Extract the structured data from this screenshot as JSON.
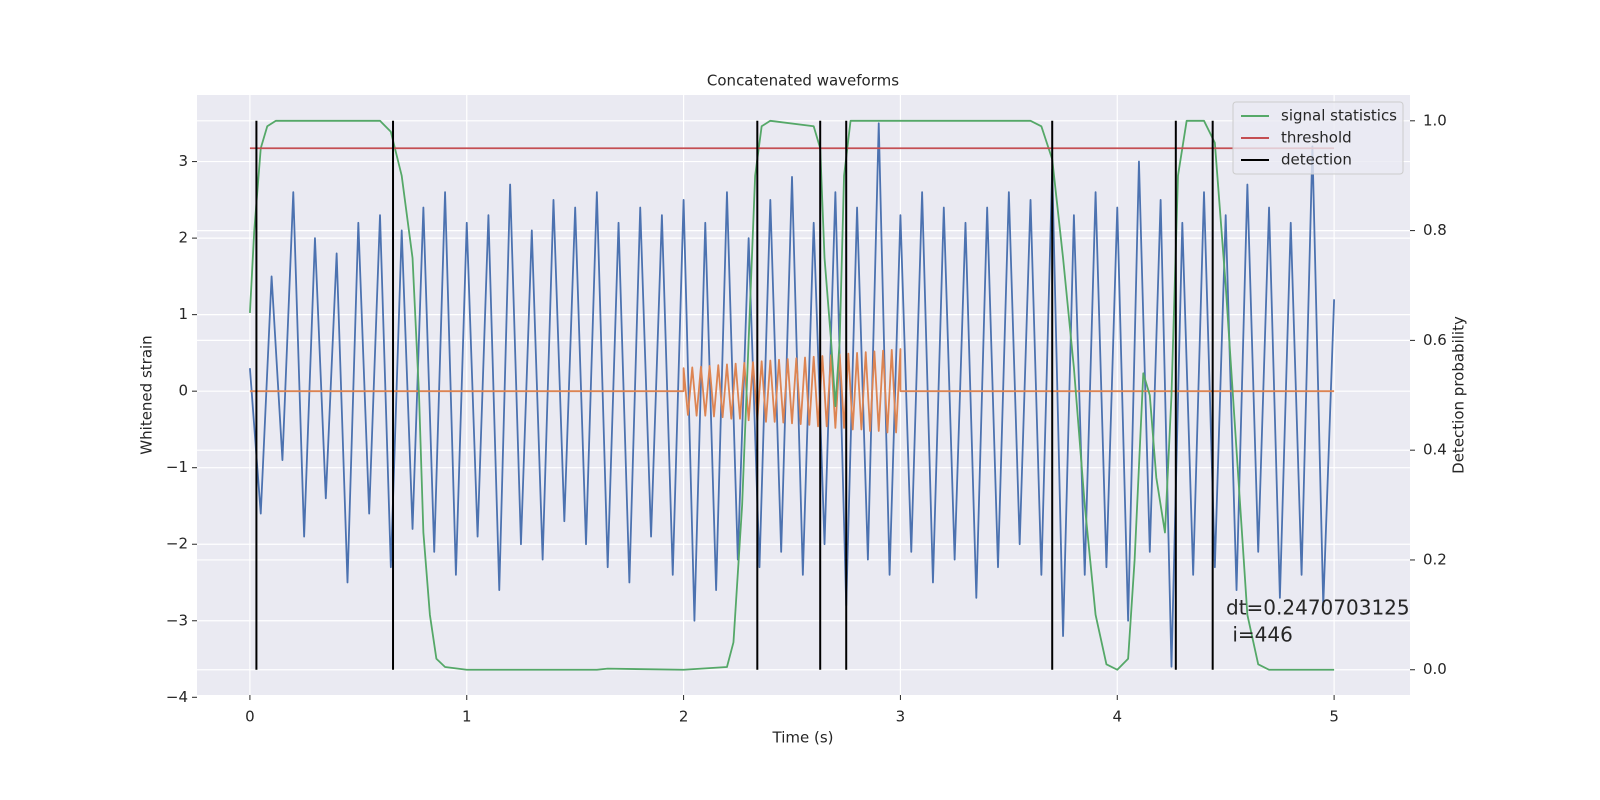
{
  "chart_data": {
    "type": "line",
    "title": "Concatenated waveforms",
    "xlabel": "Time (s)",
    "ylabel": "Whitened strain",
    "y2label": "Detection probability",
    "xlim": [
      -0.244,
      5.35
    ],
    "ylim": [
      -3.97,
      3.87
    ],
    "y2lim": [
      -0.046,
      1.047
    ],
    "xticks": [
      0,
      1,
      2,
      3,
      4,
      5
    ],
    "yticks": [
      {
        "value": -4,
        "label": "−4"
      },
      {
        "value": -3,
        "label": "−3"
      },
      {
        "value": -2,
        "label": "−2"
      },
      {
        "value": -1,
        "label": "−1"
      },
      0,
      1,
      2,
      3
    ],
    "y2ticks": [
      {
        "value": 0,
        "label": "0.0"
      },
      0.2,
      0.4,
      0.6,
      0.8,
      {
        "value": 1,
        "label": "1.0"
      }
    ],
    "grid": true,
    "legend": "upper right",
    "annotation": [
      "dt=0.2470703125",
      " i=446"
    ],
    "series": [
      {
        "color": "#4c72b0",
        "axis": "y",
        "x": [
          0,
          0.05,
          0.1,
          0.15,
          0.2,
          0.25,
          0.3,
          0.35,
          0.4,
          0.45,
          0.5,
          0.55,
          0.6,
          0.65,
          0.7,
          0.75,
          0.8,
          0.85,
          0.9,
          0.95,
          1.0,
          1.05,
          1.1,
          1.15,
          1.2,
          1.25,
          1.3,
          1.35,
          1.4,
          1.45,
          1.5,
          1.55,
          1.6,
          1.65,
          1.7,
          1.75,
          1.8,
          1.85,
          1.9,
          1.95,
          2.0,
          2.05,
          2.1,
          2.15,
          2.2,
          2.25,
          2.3,
          2.35,
          2.4,
          2.45,
          2.5,
          2.55,
          2.6,
          2.65,
          2.7,
          2.75,
          2.8,
          2.85,
          2.9,
          2.95,
          3.0,
          3.05,
          3.1,
          3.15,
          3.2,
          3.25,
          3.3,
          3.35,
          3.4,
          3.45,
          3.5,
          3.55,
          3.6,
          3.65,
          3.7,
          3.75,
          3.8,
          3.85,
          3.9,
          3.95,
          4.0,
          4.05,
          4.1,
          4.15,
          4.2,
          4.25,
          4.3,
          4.35,
          4.4,
          4.45,
          4.5,
          4.55,
          4.6,
          4.65,
          4.7,
          4.75,
          4.8,
          4.85,
          4.9,
          4.95,
          5.0
        ],
        "values": [
          0.3,
          -1.6,
          1.5,
          -0.9,
          2.6,
          -1.9,
          2.0,
          -1.4,
          1.8,
          -2.5,
          2.2,
          -1.6,
          2.3,
          -2.3,
          2.1,
          -1.8,
          2.4,
          -2.1,
          2.6,
          -2.4,
          2.2,
          -1.9,
          2.3,
          -2.6,
          2.7,
          -2.0,
          2.1,
          -2.2,
          2.5,
          -1.7,
          2.4,
          -2.0,
          2.6,
          -2.3,
          2.2,
          -2.5,
          2.4,
          -1.9,
          2.3,
          -2.4,
          2.5,
          -3.0,
          2.2,
          -2.6,
          2.6,
          -2.2,
          2.0,
          -2.3,
          2.5,
          -2.1,
          2.8,
          -2.4,
          2.2,
          -2.0,
          2.6,
          -2.8,
          2.4,
          -2.2,
          3.5,
          -2.4,
          2.3,
          -2.1,
          2.6,
          -2.5,
          2.4,
          -2.2,
          2.2,
          -2.7,
          2.4,
          -2.3,
          2.6,
          -2.0,
          2.5,
          -2.4,
          2.9,
          -3.2,
          2.3,
          -2.4,
          2.6,
          -2.3,
          2.4,
          -3.0,
          3.0,
          -2.1,
          2.5,
          -3.6,
          2.2,
          -2.4,
          2.6,
          -2.3,
          2.3,
          -2.6,
          2.7,
          -2.1,
          2.4,
          -2.7,
          2.2,
          -2.4,
          3.2,
          -2.8,
          1.2
        ]
      },
      {
        "color": "#dd8452",
        "axis": "y",
        "x": [
          0,
          2.0,
          2.0,
          2.02,
          2.04,
          2.06,
          2.08,
          2.1,
          2.12,
          2.14,
          2.16,
          2.18,
          2.2,
          2.22,
          2.24,
          2.26,
          2.28,
          2.3,
          2.32,
          2.34,
          2.36,
          2.38,
          2.4,
          2.42,
          2.44,
          2.46,
          2.48,
          2.5,
          2.52,
          2.54,
          2.56,
          2.58,
          2.6,
          2.62,
          2.64,
          2.66,
          2.68,
          2.7,
          2.72,
          2.74,
          2.76,
          2.78,
          2.8,
          2.82,
          2.84,
          2.86,
          2.88,
          2.9,
          2.92,
          2.94,
          2.96,
          2.98,
          3.0,
          3.0,
          5.0
        ],
        "values": [
          0,
          0,
          0.3,
          -0.31,
          0.31,
          -0.32,
          0.32,
          -0.32,
          0.33,
          -0.33,
          0.34,
          -0.34,
          0.35,
          -0.36,
          0.36,
          -0.36,
          0.37,
          -0.38,
          0.38,
          -0.38,
          0.39,
          -0.4,
          0.4,
          -0.4,
          0.41,
          -0.41,
          0.42,
          -0.42,
          0.43,
          -0.43,
          0.44,
          -0.44,
          0.45,
          -0.46,
          0.46,
          -0.46,
          0.47,
          -0.48,
          0.48,
          -0.48,
          0.49,
          -0.5,
          0.5,
          -0.5,
          0.51,
          -0.52,
          0.52,
          -0.52,
          0.53,
          -0.54,
          0.54,
          -0.54,
          0.55,
          0,
          0
        ]
      },
      {
        "name": "signal statistics",
        "color": "#55a868",
        "axis": "y2",
        "x": [
          0,
          0.02,
          0.05,
          0.08,
          0.12,
          0.6,
          0.65,
          0.7,
          0.75,
          0.78,
          0.8,
          0.83,
          0.86,
          0.9,
          1.0,
          1.6,
          1.65,
          2.0,
          2.2,
          2.23,
          2.27,
          2.3,
          2.33,
          2.36,
          2.4,
          2.6,
          2.63,
          2.65,
          2.68,
          2.7,
          2.72,
          2.74,
          2.77,
          3.6,
          3.65,
          3.7,
          3.75,
          3.8,
          3.85,
          3.9,
          3.95,
          4.0,
          4.05,
          4.08,
          4.12,
          4.15,
          4.18,
          4.22,
          4.25,
          4.28,
          4.32,
          4.4,
          4.45,
          4.5,
          4.55,
          4.6,
          4.65,
          4.7,
          5.0
        ],
        "values": [
          0.65,
          0.8,
          0.95,
          0.99,
          1.0,
          1.0,
          0.98,
          0.9,
          0.75,
          0.5,
          0.25,
          0.1,
          0.02,
          0.005,
          0.0,
          0.0,
          0.002,
          0.0,
          0.005,
          0.05,
          0.3,
          0.6,
          0.9,
          0.99,
          1.0,
          0.99,
          0.95,
          0.75,
          0.6,
          0.48,
          0.6,
          0.9,
          1.0,
          1.0,
          0.99,
          0.93,
          0.75,
          0.55,
          0.3,
          0.1,
          0.01,
          0.0,
          0.02,
          0.2,
          0.54,
          0.5,
          0.35,
          0.25,
          0.5,
          0.9,
          1.0,
          1.0,
          0.96,
          0.7,
          0.4,
          0.1,
          0.01,
          0.0,
          0.0
        ]
      },
      {
        "name": "threshold",
        "color": "#c44e52",
        "axis": "y2",
        "x": [
          0,
          5
        ],
        "values": [
          0.95,
          0.95
        ]
      },
      {
        "name": "detection",
        "color": "#000000",
        "axis": "y2",
        "type": "vlines",
        "x": [
          0.03,
          0.66,
          2.34,
          2.63,
          2.75,
          3.7,
          4.27,
          4.44
        ],
        "ymin": 0,
        "ymax": 1
      }
    ]
  }
}
